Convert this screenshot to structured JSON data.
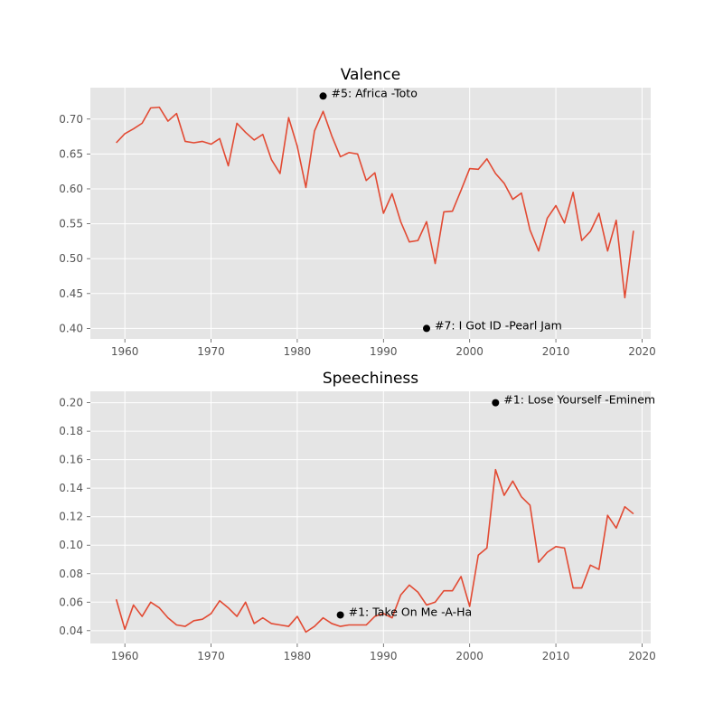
{
  "chart_data": [
    {
      "type": "line",
      "title": "Valence",
      "xlim": [
        1956,
        2021
      ],
      "ylim": [
        0.385,
        0.745
      ],
      "xticks": [
        1960,
        1970,
        1980,
        1990,
        2000,
        2010,
        2020
      ],
      "yticks": [
        0.4,
        0.45,
        0.5,
        0.55,
        0.6,
        0.65,
        0.7
      ],
      "ytick_decimals": 2,
      "grid": true,
      "line_color": "#e24a33",
      "series": [
        {
          "x": [
            1959,
            1960,
            1961,
            1962,
            1963,
            1964,
            1965,
            1966,
            1967,
            1968,
            1969,
            1970,
            1971,
            1972,
            1973,
            1974,
            1975,
            1976,
            1977,
            1978,
            1979,
            1980,
            1981,
            1982,
            1983,
            1984,
            1985,
            1986,
            1987,
            1988,
            1989,
            1990,
            1991,
            1992,
            1993,
            1994,
            1995,
            1996,
            1997,
            1998,
            1999,
            2000,
            2001,
            2002,
            2003,
            2004,
            2005,
            2006,
            2007,
            2008,
            2009,
            2010,
            2011,
            2012,
            2013,
            2014,
            2015,
            2016,
            2017,
            2018,
            2019
          ],
          "values": [
            0.666,
            0.679,
            0.686,
            0.694,
            0.716,
            0.717,
            0.697,
            0.708,
            0.668,
            0.666,
            0.668,
            0.664,
            0.672,
            0.633,
            0.694,
            0.681,
            0.67,
            0.678,
            0.642,
            0.622,
            0.702,
            0.661,
            0.602,
            0.683,
            0.711,
            0.676,
            0.646,
            0.652,
            0.65,
            0.612,
            0.623,
            0.565,
            0.593,
            0.553,
            0.524,
            0.526,
            0.553,
            0.493,
            0.567,
            0.568,
            0.598,
            0.629,
            0.628,
            0.643,
            0.622,
            0.608,
            0.585,
            0.594,
            0.541,
            0.511,
            0.558,
            0.576,
            0.551,
            0.595,
            0.526,
            0.539,
            0.565,
            0.511,
            0.555,
            0.444,
            0.54
          ]
        }
      ],
      "annotations": [
        {
          "x": 1983,
          "y": 0.733,
          "text": "#5: Africa -Toto"
        },
        {
          "x": 1995,
          "y": 0.4,
          "text": "#7: I Got ID -Pearl Jam"
        }
      ]
    },
    {
      "type": "line",
      "title": "Speechiness",
      "xlim": [
        1956,
        2021
      ],
      "ylim": [
        0.031,
        0.208
      ],
      "xticks": [
        1960,
        1970,
        1980,
        1990,
        2000,
        2010,
        2020
      ],
      "yticks": [
        0.04,
        0.06,
        0.08,
        0.1,
        0.12,
        0.14,
        0.16,
        0.18,
        0.2
      ],
      "ytick_decimals": 2,
      "grid": true,
      "line_color": "#e24a33",
      "series": [
        {
          "x": [
            1959,
            1960,
            1961,
            1962,
            1963,
            1964,
            1965,
            1966,
            1967,
            1968,
            1969,
            1970,
            1971,
            1972,
            1973,
            1974,
            1975,
            1976,
            1977,
            1978,
            1979,
            1980,
            1981,
            1982,
            1983,
            1984,
            1985,
            1986,
            1987,
            1988,
            1989,
            1990,
            1991,
            1992,
            1993,
            1994,
            1995,
            1996,
            1997,
            1998,
            1999,
            2000,
            2001,
            2002,
            2003,
            2004,
            2005,
            2006,
            2007,
            2008,
            2009,
            2010,
            2011,
            2012,
            2013,
            2014,
            2015,
            2016,
            2017,
            2018,
            2019
          ],
          "values": [
            0.062,
            0.041,
            0.058,
            0.05,
            0.06,
            0.056,
            0.049,
            0.044,
            0.043,
            0.047,
            0.048,
            0.052,
            0.061,
            0.056,
            0.05,
            0.06,
            0.045,
            0.049,
            0.045,
            0.044,
            0.043,
            0.05,
            0.039,
            0.043,
            0.049,
            0.045,
            0.043,
            0.044,
            0.044,
            0.044,
            0.05,
            0.052,
            0.049,
            0.065,
            0.072,
            0.067,
            0.058,
            0.06,
            0.068,
            0.068,
            0.078,
            0.057,
            0.093,
            0.098,
            0.153,
            0.135,
            0.145,
            0.134,
            0.128,
            0.088,
            0.095,
            0.099,
            0.098,
            0.07,
            0.07,
            0.086,
            0.083,
            0.121,
            0.112,
            0.127,
            0.122
          ]
        }
      ],
      "annotations": [
        {
          "x": 2003,
          "y": 0.2,
          "text": "#1: Lose Yourself -Eminem"
        },
        {
          "x": 1985,
          "y": 0.051,
          "text": "#1: Take On Me -A-Ha"
        }
      ]
    }
  ]
}
